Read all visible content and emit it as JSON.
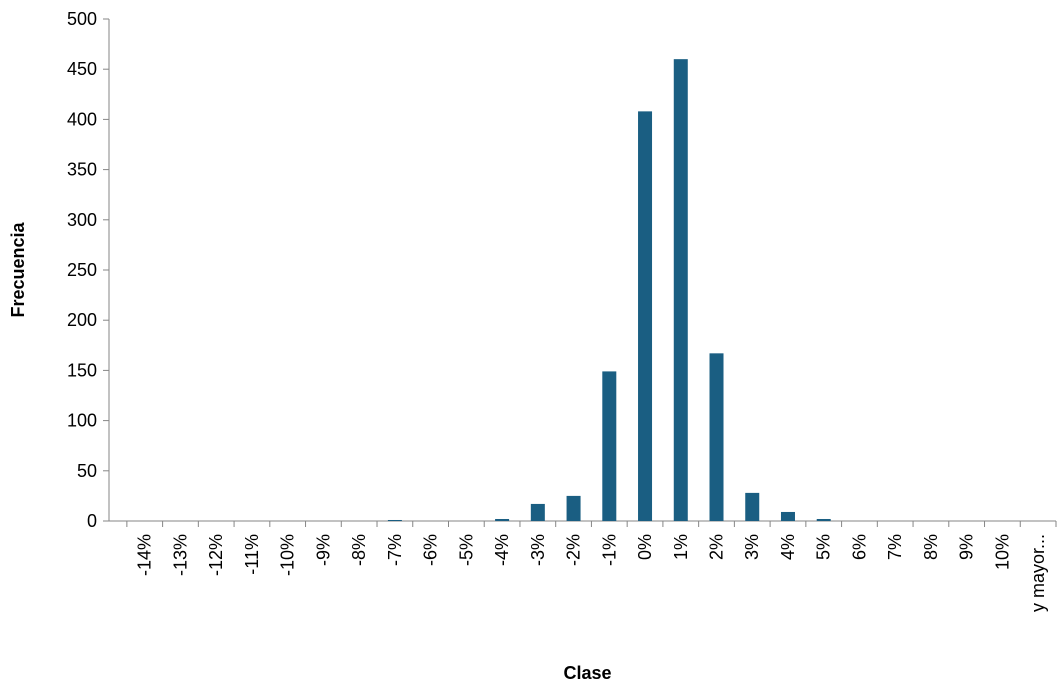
{
  "chart_data": {
    "type": "bar",
    "title": "",
    "xlabel": "Clase",
    "ylabel": "Frecuencia",
    "ylim": [
      0,
      500
    ],
    "yticks": [
      "0",
      "50",
      "100",
      "150",
      "200",
      "250",
      "300",
      "350",
      "400",
      "450",
      "500"
    ],
    "grid": false,
    "legend": "none",
    "bar_color": "#1a5e82",
    "categories": [
      "-14%",
      "-13%",
      "-12%",
      "-11%",
      "-10%",
      "-9%",
      "-8%",
      "-7%",
      "-6%",
      "-5%",
      "-4%",
      "-3%",
      "-2%",
      "-1%",
      "0%",
      "1%",
      "2%",
      "3%",
      "4%",
      "5%",
      "6%",
      "7%",
      "8%",
      "9%",
      "10%",
      "y mayor..."
    ],
    "values": [
      0,
      0,
      0,
      0,
      0,
      0,
      0,
      1,
      0,
      0,
      2,
      17,
      25,
      149,
      408,
      460,
      167,
      28,
      9,
      2,
      0,
      0,
      0,
      0,
      0,
      0
    ]
  }
}
